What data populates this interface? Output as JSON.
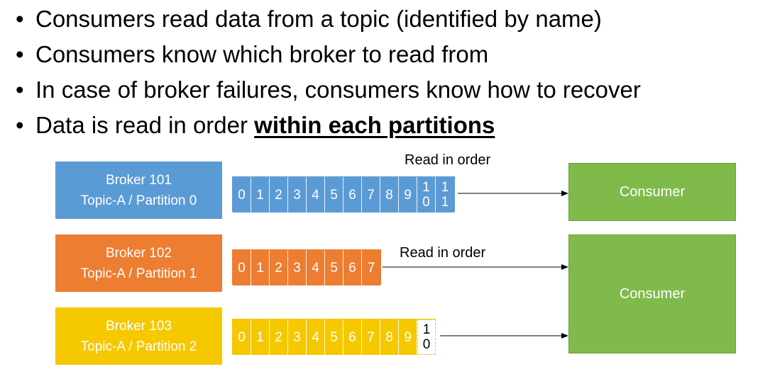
{
  "bullets": [
    {
      "text": "Consumers read data from a topic (identified by name)"
    },
    {
      "text": "Consumers know which broker to read from"
    },
    {
      "text": "In case of broker failures, consumers know how to recover"
    },
    {
      "text": "Data is read in order ",
      "emphasis": "within each partitions"
    }
  ],
  "brokers": [
    {
      "name": "Broker 101",
      "partition": "Topic-A / Partition 0",
      "color": "#5b9bd5"
    },
    {
      "name": "Broker 102",
      "partition": "Topic-A / Partition 1",
      "color": "#ed7d31"
    },
    {
      "name": "Broker 103",
      "partition": "Topic-A / Partition 2",
      "color": "#f5c800"
    }
  ],
  "logs": [
    {
      "offsets": [
        "0",
        "1",
        "2",
        "3",
        "4",
        "5",
        "6",
        "7",
        "8",
        "9",
        "1\n0",
        "1\n1"
      ],
      "pending": []
    },
    {
      "offsets": [
        "0",
        "1",
        "2",
        "3",
        "4",
        "5",
        "6",
        "7"
      ],
      "pending": []
    },
    {
      "offsets": [
        "0",
        "1",
        "2",
        "3",
        "4",
        "5",
        "6",
        "7",
        "8",
        "9"
      ],
      "pending": [
        "1\n0"
      ]
    }
  ],
  "read_labels": [
    "Read in order",
    "Read in order"
  ],
  "consumers": [
    "Consumer",
    "Consumer"
  ],
  "colors": {
    "arrow": "#000000",
    "consumer": "#7fba4b"
  }
}
